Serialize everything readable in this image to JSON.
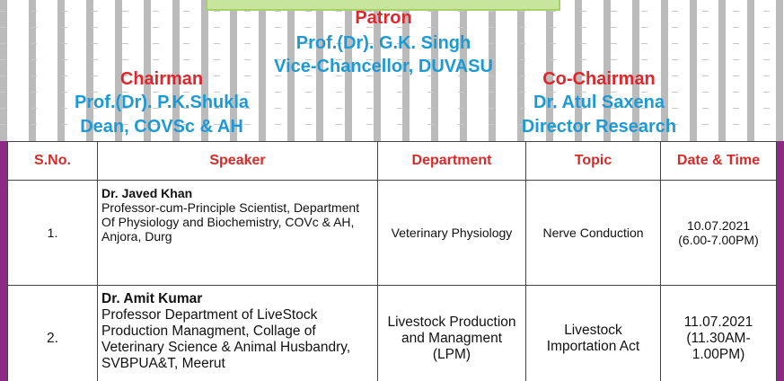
{
  "header": {
    "patron": {
      "role": "Patron",
      "name": "Prof.(Dr). G.K. Singh",
      "title": "Vice-Chancellor, DUVASU"
    },
    "chairman": {
      "role": "Chairman",
      "name": "Prof.(Dr). P.K.Shukla",
      "title": "Dean, COVSc & AH"
    },
    "co_chairman": {
      "role": "Co-Chairman",
      "name": "Dr. Atul Saxena",
      "title": "Director Research"
    }
  },
  "table": {
    "columns": [
      "S.No.",
      "Speaker",
      "Department",
      "Topic",
      "Date & Time"
    ],
    "rows": [
      {
        "sno": "1.",
        "name": "Dr. Javed Khan",
        "details": "Professor-cum-Principle Scientist, Department Of Physiology and Biochemistry, COVc & AH, Anjora, Durg",
        "department": "Veterinary Physiology",
        "topic": "Nerve Conduction",
        "date": "10.07.2021",
        "time": "(6.00-7.00PM)"
      },
      {
        "sno": "2.",
        "name": "Dr. Amit Kumar",
        "details": "Professor Department of LiveStock Production Managment, Collage of Veterinary Science & Animal Husbandry, SVBPUA&T, Meerut",
        "department": "Livestock Production and Managment (LPM)",
        "topic": "Livestock Importation Act",
        "date": "11.07.2021",
        "time": "(11.30AM-1.00PM)"
      }
    ]
  }
}
